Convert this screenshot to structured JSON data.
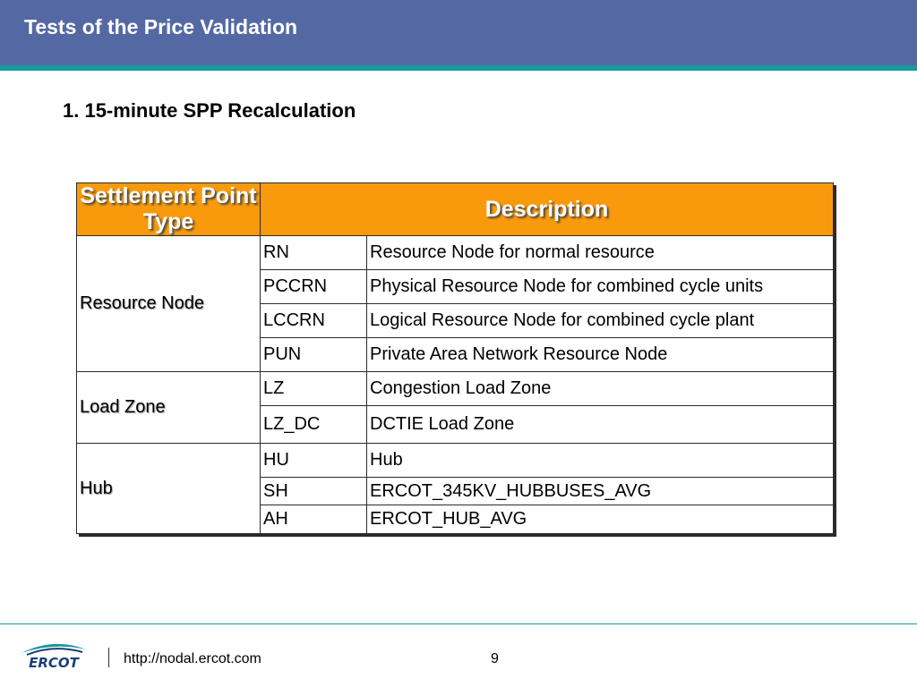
{
  "header": {
    "title": "Tests of the Price Validation",
    "bar_color": "#5469a4",
    "stripe_color": "#169a9b"
  },
  "subtitle": "1. 15-minute SPP Recalculation",
  "table": {
    "header_color": "#f99a0c",
    "columns": [
      "Settlement Point Type",
      "Description"
    ],
    "groups": [
      {
        "name": "Resource Node",
        "rows": [
          {
            "code": "RN",
            "description": "Resource Node for normal resource"
          },
          {
            "code": "PCCRN",
            "description": "Physical Resource Node for combined cycle units"
          },
          {
            "code": "LCCRN",
            "description": "Logical Resource Node for combined cycle plant"
          },
          {
            "code": "PUN",
            "description": "Private Area Network Resource Node"
          }
        ]
      },
      {
        "name": "Load Zone",
        "rows": [
          {
            "code": "LZ",
            "description": "Congestion Load Zone"
          },
          {
            "code": "LZ_DC",
            "description": "DCTIE Load Zone"
          }
        ]
      },
      {
        "name": "Hub",
        "rows": [
          {
            "code": "HU",
            "description": "Hub"
          },
          {
            "code": "SH",
            "description": "ERCOT_345KV_HUBBUSES_AVG"
          },
          {
            "code": "AH",
            "description": "ERCOT_HUB_AVG"
          }
        ]
      }
    ]
  },
  "footer": {
    "logo_text": "ERCOT",
    "logo_icon": "ercot-logo",
    "url": "http://nodal.ercot.com",
    "page_number": "9"
  }
}
